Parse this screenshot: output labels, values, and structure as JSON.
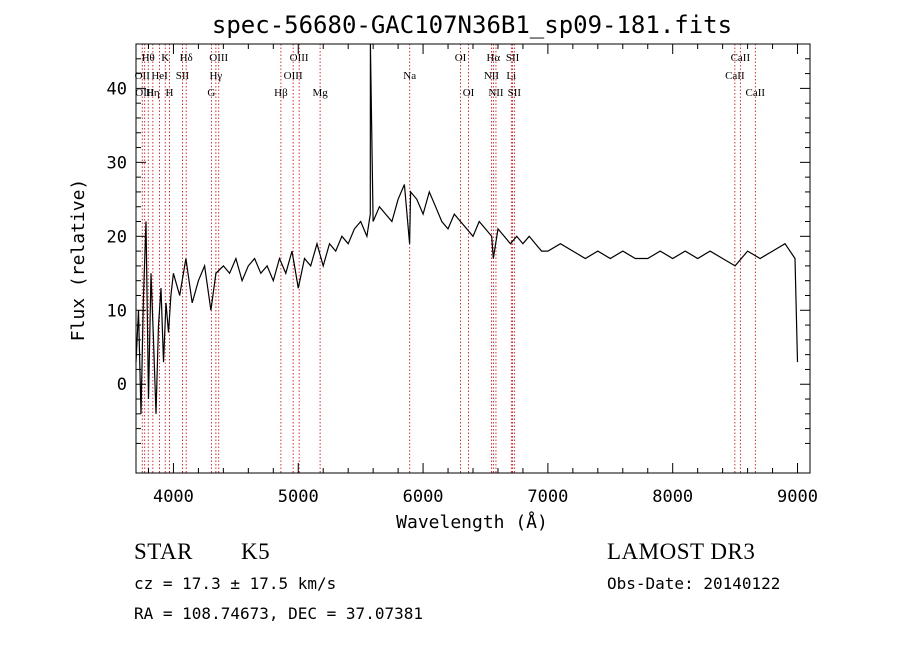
{
  "chart_data": {
    "type": "line",
    "title": "spec-56680-GAC107N36B1_sp09-181.fits",
    "xlabel": "Wavelength (Å)",
    "ylabel": "Flux (relative)",
    "xlim": [
      3700,
      9100
    ],
    "ylim": [
      -12,
      46
    ],
    "xticks": [
      4000,
      5000,
      6000,
      7000,
      8000,
      9000
    ],
    "xtick_labels": [
      "4000",
      "5000",
      "6000",
      "7000",
      "8000",
      "9000"
    ],
    "yticks": [
      0,
      10,
      20,
      30,
      40
    ],
    "ytick_labels": [
      "0",
      "10",
      "20",
      "30",
      "40"
    ],
    "grid": false,
    "series": [
      {
        "x": [
          3700,
          3720,
          3740,
          3760,
          3780,
          3800,
          3820,
          3840,
          3860,
          3880,
          3900,
          3920,
          3940,
          3960,
          3980,
          4000,
          4050,
          4100,
          4150,
          4200,
          4250,
          4300,
          4340,
          4400,
          4450,
          4500,
          4550,
          4600,
          4650,
          4700,
          4750,
          4800,
          4850,
          4900,
          4950,
          5000,
          5050,
          5100,
          5150,
          5200,
          5250,
          5300,
          5350,
          5400,
          5450,
          5500,
          5550,
          5577,
          5578,
          5600,
          5650,
          5700,
          5750,
          5800,
          5850,
          5892,
          5900,
          5950,
          6000,
          6050,
          6100,
          6150,
          6200,
          6250,
          6300,
          6350,
          6400,
          6450,
          6500,
          6550,
          6563,
          6600,
          6650,
          6700,
          6750,
          6800,
          6850,
          6900,
          6950,
          7000,
          7100,
          7200,
          7300,
          7400,
          7500,
          7600,
          7700,
          7800,
          7900,
          8000,
          8100,
          8200,
          8300,
          8400,
          8500,
          8600,
          8700,
          8800,
          8900,
          8980,
          9000
        ],
        "y": [
          3,
          10,
          -4,
          12,
          22,
          -2,
          15,
          6,
          -4,
          8,
          13,
          3,
          11,
          7,
          12,
          15,
          12,
          17,
          11,
          14,
          16,
          10,
          15,
          16,
          15,
          17,
          14,
          16,
          17,
          15,
          16,
          14,
          17,
          15,
          18,
          13,
          17,
          16,
          19,
          16,
          19,
          18,
          20,
          19,
          21,
          22,
          20,
          23,
          46,
          22,
          24,
          23,
          22,
          25,
          27,
          19,
          26,
          25,
          23,
          26,
          24,
          22,
          21,
          23,
          22,
          21,
          20,
          22,
          21,
          20,
          17,
          21,
          20,
          19,
          20,
          19,
          20,
          19,
          18,
          18,
          19,
          18,
          17,
          18,
          17,
          18,
          17,
          17,
          18,
          17,
          18,
          17,
          18,
          17,
          16,
          18,
          17,
          18,
          19,
          17,
          3
        ]
      }
    ],
    "lines": [
      {
        "x": 3750,
        "label": "OII",
        "row": 2
      },
      {
        "x": 3770,
        "label": "OIII",
        "row": 3
      },
      {
        "x": 3798,
        "label": "Hθ",
        "row": 1
      },
      {
        "x": 3835,
        "label": "Hη",
        "row": 3
      },
      {
        "x": 3889,
        "label": "HeI",
        "row": 2
      },
      {
        "x": 3934,
        "label": "K",
        "row": 1
      },
      {
        "x": 3968,
        "label": "H",
        "row": 3
      },
      {
        "x": 4072,
        "label": "SII",
        "row": 2
      },
      {
        "x": 4102,
        "label": "Hδ",
        "row": 1
      },
      {
        "x": 4304,
        "label": "G",
        "row": 3
      },
      {
        "x": 4340,
        "label": "Hγ",
        "row": 2
      },
      {
        "x": 4363,
        "label": "OIII",
        "row": 1
      },
      {
        "x": 4861,
        "label": "Hβ",
        "row": 3
      },
      {
        "x": 4959,
        "label": "OIII",
        "row": 2
      },
      {
        "x": 5007,
        "label": "OIII",
        "row": 1
      },
      {
        "x": 5175,
        "label": "Mg",
        "row": 3
      },
      {
        "x": 5893,
        "label": "Na",
        "row": 2
      },
      {
        "x": 6300,
        "label": "OI",
        "row": 1
      },
      {
        "x": 6364,
        "label": "OI",
        "row": 3
      },
      {
        "x": 6548,
        "label": "NII",
        "row": 2
      },
      {
        "x": 6563,
        "label": "Hα",
        "row": 1
      },
      {
        "x": 6584,
        "label": "NII",
        "row": 3
      },
      {
        "x": 6707,
        "label": "Li",
        "row": 2
      },
      {
        "x": 6717,
        "label": "SII",
        "row": 1
      },
      {
        "x": 6731,
        "label": "SII",
        "row": 3
      },
      {
        "x": 8498,
        "label": "CaII",
        "row": 2
      },
      {
        "x": 8542,
        "label": "CaII",
        "row": 1
      },
      {
        "x": 8662,
        "label": "CaII",
        "row": 3
      }
    ]
  },
  "info": {
    "object_class": "STAR",
    "subclass": "K5",
    "survey": "LAMOST DR3",
    "redshift": "cz = 17.3 ± 17.5 km/s",
    "obs_date": "Obs-Date: 20140122",
    "coords": "RA = 108.74673, DEC =  37.07381"
  },
  "colors": {
    "spectrum": "#000000",
    "line_markers": "#c00000"
  }
}
